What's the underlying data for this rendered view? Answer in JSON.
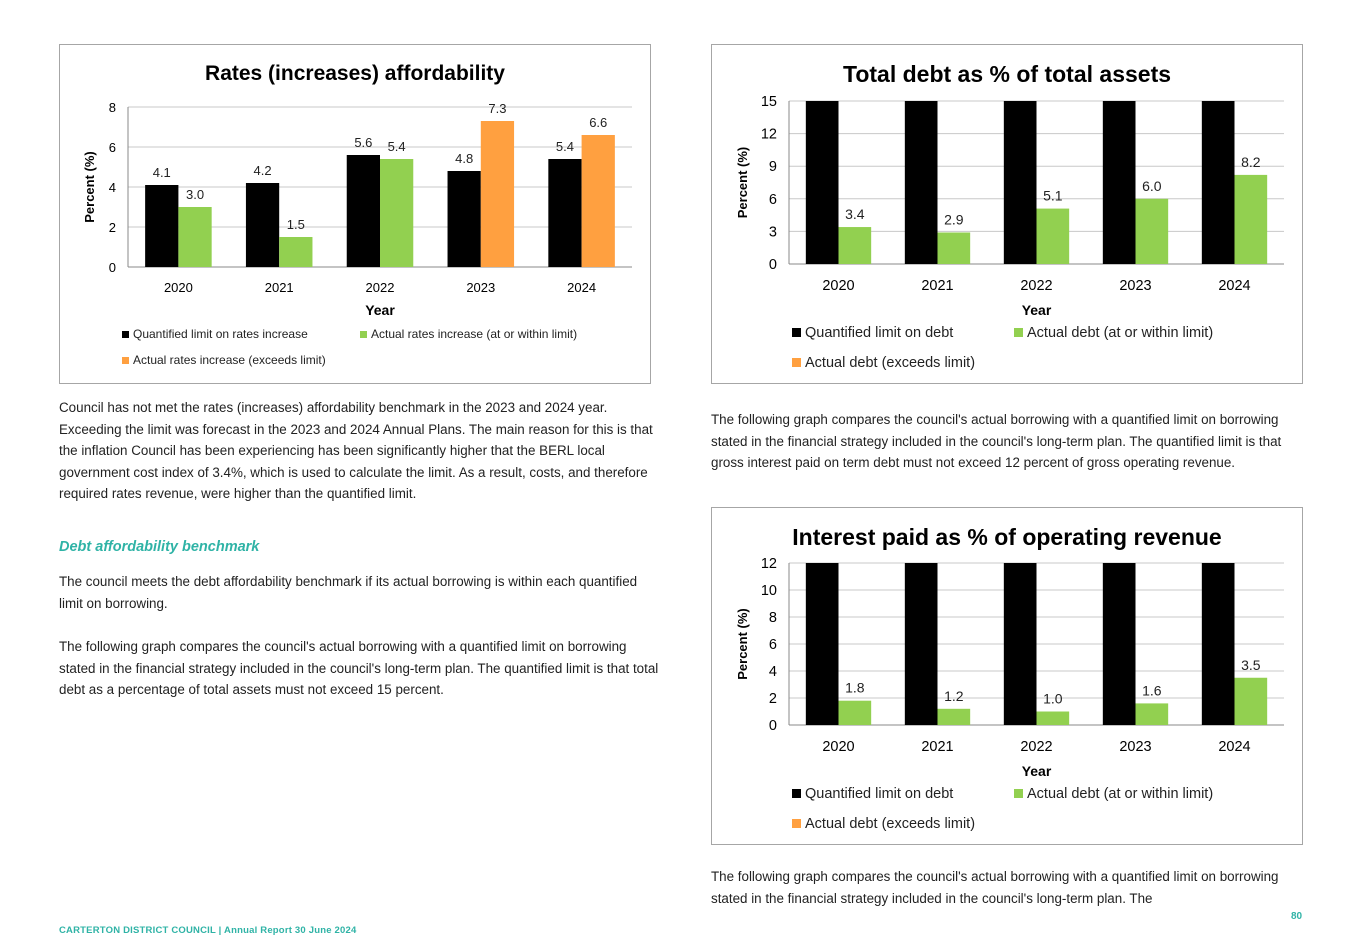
{
  "colors": {
    "limit": "#000000",
    "within": "#92d050",
    "exceeds": "#ffa040",
    "accent": "#2fb3a6"
  },
  "left": {
    "paragraph1": "Council has not met the rates (increases) affordability benchmark in the 2023 and 2024 year. Exceeding the limit was forecast in the 2023 and 2024 Annual Plans.  The main reason for this is that the inflation Council has been experiencing has been significantly higher that the BERL local government cost index of 3.4%, which is used to calculate the limit. As a result, costs, and therefore required rates revenue, were higher than the quantified limit.",
    "heading": "Debt affordability benchmark",
    "paragraph2": "The council meets the debt affordability benchmark if its actual borrowing is within each quantified limit on borrowing.",
    "paragraph3": "The following graph compares the council's actual borrowing with a quantified limit on borrowing stated in the financial strategy included in the council's long-term plan. The quantified limit is that total debt as a percentage of total assets must not exceed 15 percent."
  },
  "right": {
    "paragraph1": "The following graph compares the council's actual borrowing with a quantified limit on borrowing stated in the financial strategy included in the council's long-term plan. The quantified limit is that gross interest paid on term debt must not exceed 12 percent of gross operating revenue.",
    "paragraph2": "The following graph compares the council's actual borrowing with a quantified limit on borrowing stated in the financial strategy included in the council's long-term plan. The"
  },
  "footer": {
    "text": "CARTERTON DISTRICT COUNCIL | Annual Report 30 June 2024",
    "page_number": "80"
  },
  "chart_data": [
    {
      "type": "bar",
      "title": "Rates (increases) affordability",
      "xlabel": "Year",
      "ylabel": "Percent  (%)",
      "categories": [
        "2020",
        "2021",
        "2022",
        "2023",
        "2024"
      ],
      "ylim": [
        0,
        8
      ],
      "yticks": [
        "0",
        "2",
        "4",
        "6",
        "8"
      ],
      "grid": true,
      "legend_placement": "bottom",
      "legend": [
        "Quantified limit on rates increase",
        "Actual rates increase (at or within limit)",
        "Actual rates increase (exceeds limit)"
      ],
      "series": [
        {
          "name": "Quantified limit on rates increase",
          "values": [
            4.1,
            4.2,
            5.6,
            4.8,
            5.4
          ],
          "labels": [
            "4.1",
            "4.2",
            "5.6",
            "4.8",
            "5.4"
          ]
        },
        {
          "name": "Actual rates increase",
          "values": [
            3.0,
            1.5,
            5.4,
            7.3,
            6.6
          ],
          "labels": [
            "3.0",
            "1.5",
            "5.4",
            "7.3",
            "6.6"
          ],
          "status": [
            "within",
            "within",
            "within",
            "exceeds",
            "exceeds"
          ]
        }
      ]
    },
    {
      "type": "bar",
      "title": "Total debt as % of total assets",
      "xlabel": "Year",
      "ylabel": "Percent (%)",
      "categories": [
        "2020",
        "2021",
        "2022",
        "2023",
        "2024"
      ],
      "ylim": [
        0,
        15
      ],
      "yticks": [
        "0",
        "3",
        "6",
        "9",
        "12",
        "15"
      ],
      "grid": true,
      "legend_placement": "bottom",
      "legend": [
        "Quantified limit on debt",
        "Actual debt (at or within limit)",
        "Actual debt (exceeds limit)"
      ],
      "series": [
        {
          "name": "Quantified limit on debt",
          "values": [
            15,
            15,
            15,
            15,
            15
          ]
        },
        {
          "name": "Actual debt",
          "values": [
            3.4,
            2.9,
            5.1,
            6.0,
            8.2
          ],
          "labels": [
            "3.4",
            "2.9",
            "5.1",
            "6.0",
            "8.2"
          ],
          "status": [
            "within",
            "within",
            "within",
            "within",
            "within"
          ]
        }
      ]
    },
    {
      "type": "bar",
      "title": "Interest paid as % of operating revenue",
      "xlabel": "Year",
      "ylabel": "Percent (%)",
      "categories": [
        "2020",
        "2021",
        "2022",
        "2023",
        "2024"
      ],
      "ylim": [
        0,
        12
      ],
      "yticks": [
        "0",
        "2",
        "4",
        "6",
        "8",
        "10",
        "12"
      ],
      "grid": true,
      "legend_placement": "bottom",
      "legend": [
        "Quantified limit on debt",
        "Actual debt (at or within limit)",
        "Actual debt (exceeds limit)"
      ],
      "series": [
        {
          "name": "Quantified limit on debt",
          "values": [
            12,
            12,
            12,
            12,
            12
          ]
        },
        {
          "name": "Actual debt",
          "values": [
            1.8,
            1.2,
            1.0,
            1.6,
            3.5
          ],
          "labels": [
            "1.8",
            "1.2",
            "1.0",
            "1.6",
            "3.5"
          ],
          "status": [
            "within",
            "within",
            "within",
            "within",
            "within"
          ]
        }
      ]
    }
  ]
}
